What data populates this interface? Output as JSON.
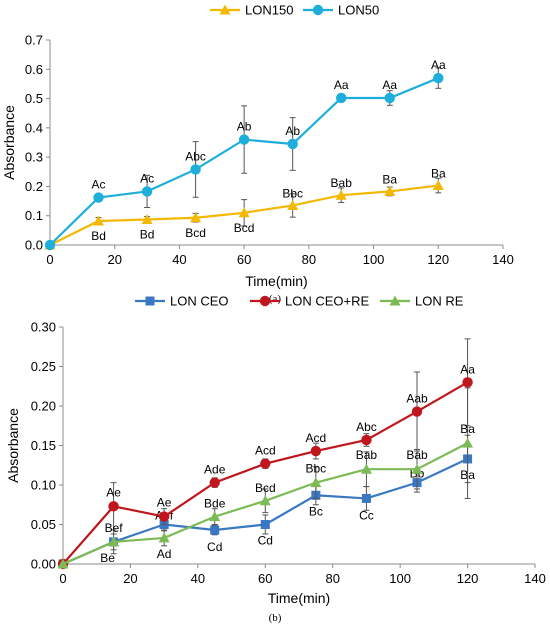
{
  "chart_data": [
    {
      "type": "line",
      "panel_label": "(a)",
      "xlabel": "Time(min)",
      "ylabel": "Absorbance",
      "xlim": [
        0,
        140
      ],
      "ylim": [
        0,
        0.7
      ],
      "xticks": [
        "0",
        "20",
        "40",
        "60",
        "80",
        "100",
        "120",
        "140"
      ],
      "yticks": [
        "0.0",
        "0.1",
        "0.2",
        "0.3",
        "0.4",
        "0.5",
        "0.6",
        "0.7"
      ],
      "legend_position": "top",
      "x": [
        0,
        15,
        30,
        45,
        60,
        75,
        90,
        105,
        120
      ],
      "series": [
        {
          "name": "LON150",
          "color": "#F5B800",
          "marker": "triangle",
          "values": [
            0.0,
            0.082,
            0.087,
            0.093,
            0.11,
            0.135,
            0.17,
            0.183,
            0.203
          ],
          "errors": [
            0,
            0.012,
            0.01,
            0.015,
            0.045,
            0.04,
            0.025,
            0.015,
            0.025
          ],
          "labels": [
            "",
            "Bd",
            "Bd",
            "Bcd",
            "Bcd",
            "Bbc",
            "Bab",
            "Ba",
            "Ba"
          ]
        },
        {
          "name": "LON50",
          "color": "#1EAEDB",
          "marker": "circle",
          "values": [
            0.0,
            0.162,
            0.183,
            0.258,
            0.36,
            0.345,
            0.502,
            0.502,
            0.57
          ],
          "errors": [
            0,
            0.01,
            0.055,
            0.095,
            0.115,
            0.09,
            0.0,
            0.025,
            0.035
          ],
          "labels": [
            "",
            "Ac",
            "Ac",
            "Abc",
            "Ab",
            "Ab",
            "Aa",
            "Aa",
            "Aa"
          ]
        }
      ]
    },
    {
      "type": "line",
      "panel_label": "(b)",
      "xlabel": "Time(min)",
      "ylabel": "Absorbance",
      "xlim": [
        0,
        140
      ],
      "ylim": [
        0,
        0.3
      ],
      "xticks": [
        "0",
        "20",
        "40",
        "60",
        "80",
        "100",
        "120",
        "140"
      ],
      "yticks": [
        "0.00",
        "0.05",
        "0.10",
        "0.15",
        "0.20",
        "0.25",
        "0.30"
      ],
      "legend_position": "top",
      "x": [
        0,
        15,
        30,
        45,
        60,
        75,
        90,
        105,
        120
      ],
      "series": [
        {
          "name": "LON CEO",
          "color": "#3A78C3",
          "marker": "square",
          "values": [
            0.0,
            0.028,
            0.05,
            0.043,
            0.05,
            0.087,
            0.083,
            0.103,
            0.133
          ],
          "errors": [
            0,
            0.01,
            0.008,
            0.006,
            0.012,
            0.012,
            0.015,
            0.012,
            0.03
          ],
          "labels": [
            "",
            "Be",
            "Aef",
            "Cd",
            "Cd",
            "Bc",
            "Cc",
            "Bb",
            "Ba"
          ]
        },
        {
          "name": "LON CEO+RE",
          "color": "#C0161D",
          "marker": "circle",
          "values": [
            0.0,
            0.073,
            0.06,
            0.103,
            0.127,
            0.143,
            0.157,
            0.193,
            0.23
          ],
          "errors": [
            0,
            0.03,
            0.01,
            0.006,
            0.006,
            0.01,
            0.008,
            0.05,
            0.055
          ],
          "labels": [
            "",
            "Ae",
            "Ae",
            "Ade",
            "Acd",
            "Acd",
            "Abc",
            "Aab",
            "Aa"
          ]
        },
        {
          "name": "LON RE",
          "color": "#7CBA56",
          "marker": "triangle",
          "values": [
            0.0,
            0.028,
            0.033,
            0.06,
            0.08,
            0.103,
            0.12,
            0.12,
            0.153
          ],
          "errors": [
            0,
            0.015,
            0.01,
            0.01,
            0.015,
            0.02,
            0.022,
            0.025,
            0.07
          ],
          "labels": [
            "",
            "Bef",
            "Ad",
            "Bde",
            "Bcd",
            "Bbc",
            "Bab",
            "Bab",
            "Ba"
          ]
        }
      ]
    }
  ]
}
